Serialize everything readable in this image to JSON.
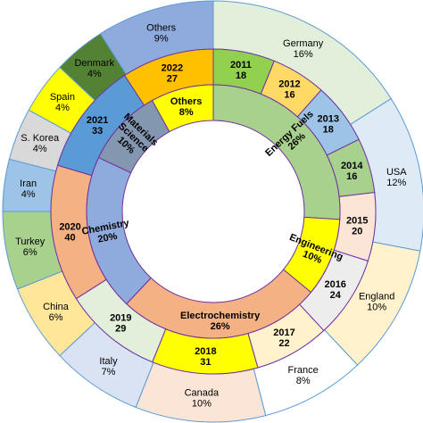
{
  "chart_data": {
    "type": "pie",
    "subtype": "nested-donut",
    "rings": [
      {
        "name": "",
        "position": "outer",
        "items": [
          {
            "name": "Germany",
            "value": 16,
            "display": "16%",
            "color": "#e2efda"
          },
          {
            "name": "USA",
            "value": 12,
            "display": "12%",
            "color": "#deebf7"
          },
          {
            "name": "England",
            "value": 10,
            "display": "10%",
            "color": "#fff2cc"
          },
          {
            "name": "France",
            "value": 8,
            "display": "8%",
            "color": "#ffffff"
          },
          {
            "name": "Canada",
            "value": 10,
            "display": "10%",
            "color": "#fbe5d6"
          },
          {
            "name": "Italy",
            "value": 7,
            "display": "7%",
            "color": "#dae3f3"
          },
          {
            "name": "China",
            "value": 6,
            "display": "6%",
            "color": "#ffe699"
          },
          {
            "name": "Turkey",
            "value": 6,
            "display": "6%",
            "color": "#a9d18e"
          },
          {
            "name": "Iran",
            "value": 4,
            "display": "4%",
            "color": "#9dc3e6"
          },
          {
            "name": "S. Korea",
            "value": 4,
            "display": "4%",
            "color": "#d9d9d9"
          },
          {
            "name": "Spain",
            "value": 4,
            "display": "4%",
            "color": "#ffff00"
          },
          {
            "name": "Denmark",
            "value": 4,
            "display": "4%",
            "color": "#548235"
          },
          {
            "name": "Others",
            "value": 9,
            "display": "9%",
            "color": "#8faadc"
          }
        ]
      },
      {
        "name": "",
        "position": "middle",
        "items": [
          {
            "name": "2011",
            "value": 18,
            "display": "18",
            "color": "#92d050"
          },
          {
            "name": "2012",
            "value": 16,
            "display": "16",
            "color": "#ffd966"
          },
          {
            "name": "2013",
            "value": 18,
            "display": "18",
            "color": "#9dc3e6"
          },
          {
            "name": "2014",
            "value": 16,
            "display": "16",
            "color": "#a9d18e"
          },
          {
            "name": "2015",
            "value": 20,
            "display": "20",
            "color": "#fbe5d6"
          },
          {
            "name": "2016",
            "value": 24,
            "display": "24",
            "color": "#ededed"
          },
          {
            "name": "2017",
            "value": 22,
            "display": "22",
            "color": "#fff2cc"
          },
          {
            "name": "2018",
            "value": 31,
            "display": "31",
            "color": "#ffff00"
          },
          {
            "name": "2019",
            "value": 29,
            "display": "29",
            "color": "#e2efda"
          },
          {
            "name": "2020",
            "value": 40,
            "display": "40",
            "color": "#f4b183"
          },
          {
            "name": "2021",
            "value": 33,
            "display": "33",
            "color": "#5b9bd5"
          },
          {
            "name": "2022",
            "value": 27,
            "display": "27",
            "color": "#ffc000"
          }
        ]
      },
      {
        "name": "",
        "position": "inner",
        "items": [
          {
            "name": "Energy Fuels",
            "value": 26,
            "display": "26%",
            "color": "#a9d18e"
          },
          {
            "name": "Engineering",
            "value": 10,
            "display": "10%",
            "color": "#ffff00"
          },
          {
            "name": "Electrochemistry",
            "value": 26,
            "display": "26%",
            "color": "#f4b183"
          },
          {
            "name": "Chemistry",
            "value": 20,
            "display": "20%",
            "color": "#8faadc"
          },
          {
            "name": "Materials Science",
            "value": 10,
            "display": "10%",
            "color": "#8497b0"
          },
          {
            "name": "Others",
            "value": 8,
            "display": "8%",
            "color": "#ffff00"
          }
        ]
      }
    ]
  }
}
